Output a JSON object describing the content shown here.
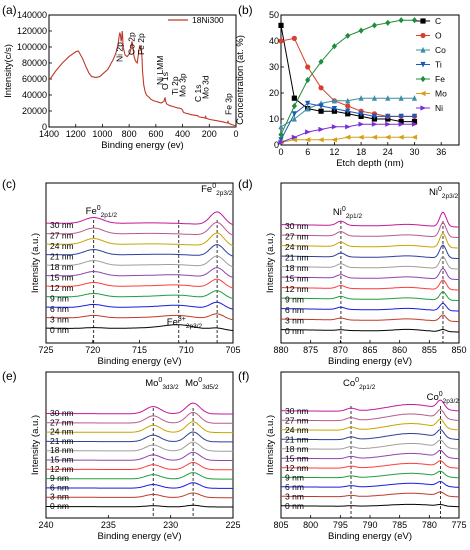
{
  "chart_data": [
    {
      "id": "a",
      "panel_label": "(a)",
      "type": "line",
      "xlabel": "Binding energy (ev)",
      "ylabel": "Intensity(c/s)",
      "xlim": [
        1400,
        0
      ],
      "ylim": [
        0,
        140000
      ],
      "xticks": [
        1400,
        1200,
        1000,
        800,
        600,
        400,
        200,
        0
      ],
      "yticks": [
        0,
        20000,
        40000,
        60000,
        80000,
        100000,
        120000,
        140000
      ],
      "grid": false,
      "legend": "top-right",
      "series": [
        {
          "name": "18Ni300",
          "color": "#c0392b",
          "x": [
            1400,
            1350,
            1300,
            1250,
            1200,
            1180,
            1150,
            1120,
            1100,
            1080,
            1050,
            1020,
            1000,
            980,
            960,
            940,
            920,
            900,
            890,
            880,
            875,
            870,
            865,
            860,
            855,
            852,
            850,
            845,
            830,
            815,
            800,
            790,
            783,
            778,
            775,
            770,
            765,
            760,
            750,
            740,
            725,
            720,
            715,
            712,
            710,
            706,
            703,
            700,
            690,
            680,
            670,
            650,
            640,
            620,
            600,
            580,
            560,
            540,
            531,
            528,
            520,
            500,
            480,
            460,
            440,
            410,
            400,
            395,
            390,
            370,
            355,
            340,
            300,
            285,
            275,
            250,
            230,
            228,
            224,
            200,
            150,
            100,
            66,
            60,
            53,
            40,
            20,
            5,
            0
          ],
          "values": [
            58000,
            70000,
            80000,
            88000,
            94000,
            95000,
            86000,
            74000,
            67000,
            63000,
            62000,
            63000,
            66000,
            69000,
            72000,
            78000,
            84000,
            92000,
            98000,
            107000,
            113000,
            118000,
            115000,
            107000,
            112000,
            120000,
            116000,
            100000,
            90000,
            88000,
            91000,
            95000,
            104000,
            107000,
            103000,
            97000,
            90000,
            86000,
            82000,
            80000,
            98000,
            102000,
            99000,
            95000,
            97000,
            93000,
            84000,
            70000,
            52000,
            44000,
            40000,
            37000,
            35000,
            33000,
            32000,
            31000,
            30000,
            32000,
            37000,
            33000,
            29000,
            27000,
            26000,
            25000,
            24000,
            23000,
            21000,
            19000,
            18000,
            17000,
            16500,
            15500,
            14500,
            14000,
            12500,
            12000,
            11000,
            14000,
            11000,
            9500,
            8000,
            6500,
            5000,
            7000,
            4500,
            3500,
            2500,
            1500,
            0
          ]
        }
      ],
      "annotations": [
        "Ni 2p",
        "Co 2p",
        "Fe 2p",
        "Ni LMM",
        "O 1s",
        "Ti 2p",
        "Mo 3p",
        "C 1s",
        "Mo 3d",
        "Fe 3p"
      ]
    },
    {
      "id": "b",
      "panel_label": "(b)",
      "type": "line",
      "xlabel": "Etch depth (nm)",
      "ylabel": "Concentration (at. %)",
      "xlim": [
        0,
        40
      ],
      "ylim": [
        0,
        50
      ],
      "xticks": [
        0,
        6,
        12,
        18,
        24,
        30,
        36
      ],
      "yticks": [
        0,
        10,
        20,
        30,
        40,
        50
      ],
      "grid": false,
      "legend": "right",
      "x": [
        0,
        3,
        6,
        9,
        12,
        15,
        18,
        21,
        24,
        27,
        30
      ],
      "series": [
        {
          "name": "C",
          "color": "#000000",
          "marker": "square",
          "values": [
            46,
            18,
            14,
            13,
            13,
            12,
            11,
            10,
            10,
            9,
            9
          ]
        },
        {
          "name": "O",
          "color": "#d6402f",
          "marker": "circle",
          "values": [
            40,
            41,
            30,
            22,
            17,
            15,
            13,
            12,
            11,
            11,
            11
          ]
        },
        {
          "name": "Co",
          "color": "#3d8fa6",
          "marker": "triangle-up",
          "values": [
            7,
            10,
            14,
            16,
            17,
            17,
            18,
            18,
            18,
            18,
            18
          ]
        },
        {
          "name": "Ti",
          "color": "#1f57b8",
          "marker": "triangle-down",
          "values": [
            2,
            12,
            16,
            15,
            14,
            13,
            12,
            11,
            11,
            11,
            11
          ]
        },
        {
          "name": "Fe",
          "color": "#1e8c3a",
          "marker": "diamond",
          "values": [
            4,
            15,
            25,
            32,
            38,
            42,
            44,
            46,
            47,
            48,
            48
          ]
        },
        {
          "name": "Mo",
          "color": "#d4a017",
          "marker": "triangle-left",
          "values": [
            1,
            2,
            2,
            2,
            2,
            3,
            3,
            3,
            3,
            3,
            3
          ]
        },
        {
          "name": "Ni",
          "color": "#7a2fd4",
          "marker": "triangle-right",
          "values": [
            1,
            3,
            5,
            6,
            7,
            7,
            8,
            8,
            8,
            8,
            8
          ]
        }
      ]
    },
    {
      "id": "c",
      "panel_label": "(c)",
      "type": "line",
      "xlabel": "Binding energy (eV)",
      "ylabel": "Intensity (a.u.)",
      "xlim": [
        725,
        705
      ],
      "xticks": [
        725,
        720,
        715,
        710,
        705
      ],
      "grid": false,
      "stack_labels": [
        "30 nm",
        "27 nm",
        "24 nm",
        "21 nm",
        "18 nm",
        "15 nm",
        "12 nm",
        "9 nm",
        "6 nm",
        "3 nm",
        "0 nm"
      ],
      "peaks": [
        {
          "label_main": "Fe",
          "label_sup": "0",
          "label_sub": "2p1/2",
          "position": 719.9
        },
        {
          "label_main": "Fe",
          "label_sup": "0",
          "label_sub": "2p3/2",
          "position": 706.7
        },
        {
          "label_main": "Fe",
          "label_sup": "3+",
          "label_sub": "2p3/2",
          "position": 710.8
        }
      ]
    },
    {
      "id": "d",
      "panel_label": "(d)",
      "type": "line",
      "xlabel": "Binding energy (eV)",
      "ylabel": "Intensity (a.u.)",
      "xlim": [
        880,
        850
      ],
      "xticks": [
        880,
        875,
        870,
        865,
        860,
        855,
        850
      ],
      "grid": false,
      "stack_labels": [
        "30 nm",
        "27 nm",
        "24 nm",
        "21 nm",
        "18 nm",
        "15 nm",
        "12 nm",
        "9 nm",
        "6 nm",
        "3 nm",
        "0 nm"
      ],
      "peaks": [
        {
          "label_main": "Ni",
          "label_sup": "0",
          "label_sub": "2p1/2",
          "position": 869.9
        },
        {
          "label_main": "Ni",
          "label_sup": "0",
          "label_sub": "2p3/2",
          "position": 852.7
        }
      ]
    },
    {
      "id": "e",
      "panel_label": "(e)",
      "type": "line",
      "xlabel": "Binding energy (eV)",
      "ylabel": "Intensity (a.u.)",
      "xlim": [
        240,
        225
      ],
      "xticks": [
        240,
        235,
        230,
        225
      ],
      "grid": false,
      "stack_labels": [
        "30 nm",
        "27 nm",
        "24 nm",
        "21 nm",
        "18 nm",
        "15 nm",
        "12 nm",
        "9 nm",
        "6 nm",
        "3 nm",
        "0 nm"
      ],
      "peaks": [
        {
          "label_main": "Mo",
          "label_sup": "0",
          "label_sub": "3d3/2",
          "position": 231.4
        },
        {
          "label_main": "Mo",
          "label_sup": "0",
          "label_sub": "3d5/2",
          "position": 228.2
        }
      ]
    },
    {
      "id": "f",
      "panel_label": "(f)",
      "type": "line",
      "xlabel": "Binding energy (eV)",
      "ylabel": "Intensity (a.u.)",
      "xlim": [
        805,
        775
      ],
      "xticks": [
        805,
        800,
        795,
        790,
        785,
        780,
        775
      ],
      "grid": false,
      "stack_labels": [
        "30 nm",
        "27 nm",
        "24 nm",
        "21 nm",
        "18 nm",
        "15 nm",
        "12 nm",
        "9 nm",
        "6 nm",
        "3 nm",
        "0 nm"
      ],
      "peaks": [
        {
          "label_main": "Co",
          "label_sup": "0",
          "label_sub": "2p1/2",
          "position": 793.2
        },
        {
          "label_main": "Co",
          "label_sup": "0",
          "label_sub": "2p3/2",
          "position": 778.1
        }
      ]
    }
  ],
  "stack_colors": [
    "#c2189e",
    "#b85a8f",
    "#c7a400",
    "#2f3f9e",
    "#9e9e9e",
    "#8e44ad",
    "#ff3a3a",
    "#1e9e3e",
    "#1a1ae0",
    "#c0392b",
    "#000000"
  ]
}
